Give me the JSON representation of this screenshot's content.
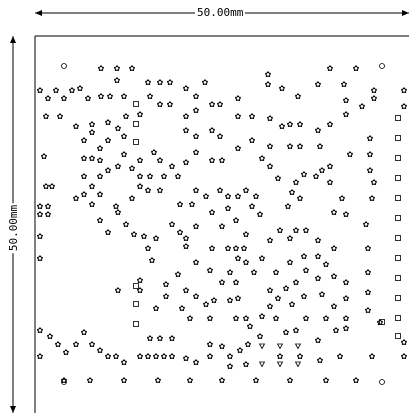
{
  "dimensions": {
    "width_label": "50.00mm",
    "height_label": "50.00mm"
  },
  "colors": {
    "line": "#000000",
    "background": "#ffffff"
  },
  "symbols": [
    "asterisk-flower",
    "open-square",
    "open-circle",
    "open-triangle-down"
  ]
}
